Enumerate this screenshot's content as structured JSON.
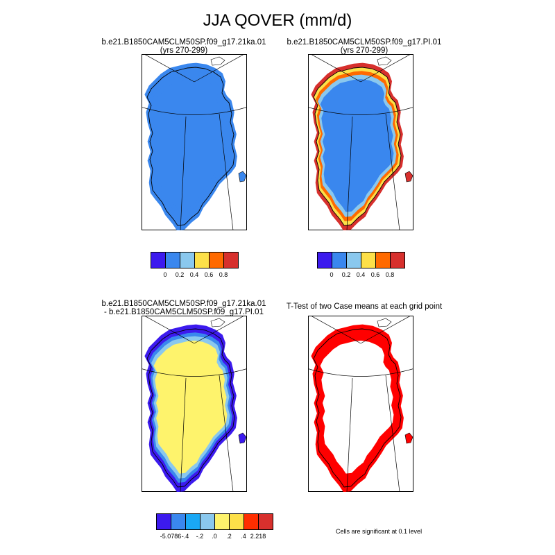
{
  "title": "JJA QOVER (mm/d)",
  "panels": [
    {
      "id": "ka",
      "title_line1": "b.e21.B1850CAM5CLM50SP.f09_g17.21ka.01",
      "title_line2": "(yrs 270-299)",
      "fill_color": "#3A87EE",
      "edge_colors": [
        "#3A87EE",
        "#3A87EE",
        "#3A87EE",
        "#3A87EE"
      ]
    },
    {
      "id": "pi",
      "title_line1": "b.e21.B1850CAM5CLM50SP.f09_g17.PI.01",
      "title_line2": "(yrs 270-299)",
      "fill_color": "#3A87EE",
      "edge_colors": [
        "#D7302D",
        "#FDE049",
        "#FF6A00",
        "#8AC8EE"
      ]
    },
    {
      "id": "diff",
      "title_line1": "b.e21.B1850CAM5CLM50SP.f09_g17.21ka.01",
      "title_line2": "- b.e21.B1850CAM5CLM50SP.f09_g17.PI.01",
      "fill_color": "#FEF36C",
      "edge_colors": [
        "#3C1AEE",
        "#3C1AEE",
        "#3A87EE",
        "#8AC8EE"
      ]
    },
    {
      "id": "ttest",
      "title_line1": "T-Test of two Case means at each grid point",
      "title_line2": "",
      "fill_color": "#FFFFFF",
      "edge_colors": [
        "#FF0000",
        "#FF0000",
        "#FF0000",
        "#FF0000"
      ]
    }
  ],
  "labelbar_top": {
    "colors": [
      "#3C1AEE",
      "#3A87EE",
      "#8AC8EE",
      "#FDE049",
      "#FF6A00",
      "#D7302D"
    ],
    "ticks": [
      "0",
      "0.2",
      "0.4",
      "0.6",
      "0.8"
    ]
  },
  "labelbar_diff": {
    "colors": [
      "#3C1AEE",
      "#3A87EE",
      "#1AA8F5",
      "#8AC8EE",
      "#FEF36C",
      "#FDE049",
      "#FF2E00",
      "#D7302D"
    ],
    "ticks": [
      "-5.0786",
      "-.4",
      "-.2",
      ".0",
      ".2",
      ".4",
      "2.218"
    ]
  },
  "footnote": "Cells are significant at 0.1 level"
}
